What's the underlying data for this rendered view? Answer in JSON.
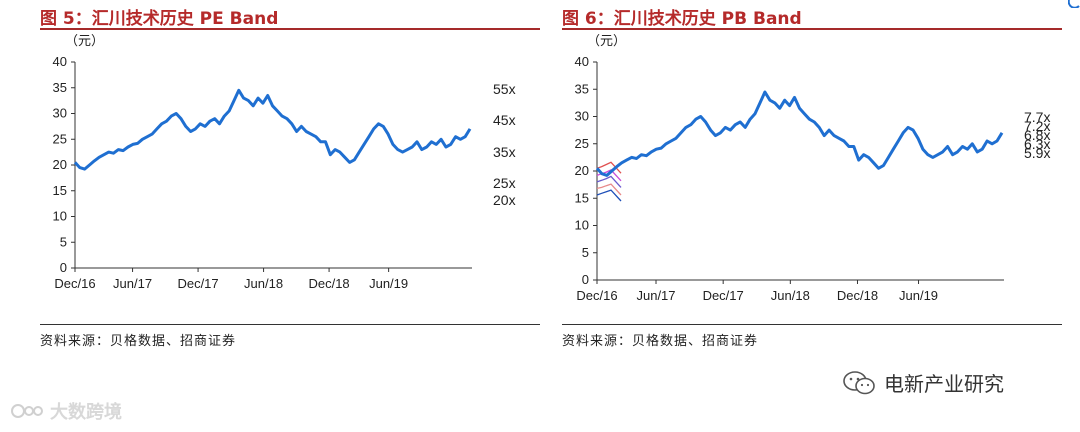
{
  "panels": [
    {
      "title": "图 5：汇川技术历史 PE Band",
      "source": "资料来源：贝格数据、招商证券"
    },
    {
      "title": "图 6：汇川技术历史 PB Band",
      "source": "资料来源：贝格数据、招商证券"
    }
  ],
  "watermarks": {
    "right": "电新产业研究",
    "left": "大数跨境"
  },
  "colors": {
    "line": "#1f6fd1",
    "title": "#b52a2a"
  },
  "chart_data": [
    {
      "type": "line",
      "title": "图 5：汇川技术历史 PE Band",
      "ylabel": "（元）",
      "ylim": [
        0,
        40
      ],
      "yticks": [
        0,
        5,
        10,
        15,
        20,
        25,
        30,
        35,
        40
      ],
      "xticks": [
        "Dec/16",
        "Jun/17",
        "Dec/17",
        "Jun/18",
        "Dec/18",
        "Jun/19"
      ],
      "band_labels": [
        "55x",
        "45x",
        "35x",
        "25x",
        "20x"
      ],
      "series": [
        {
          "values": [
            20.5,
            19.5,
            19.2,
            20.0,
            20.8,
            21.5,
            22.0,
            22.5,
            22.3,
            23.0,
            22.8,
            23.5,
            24.0,
            24.2,
            25.0,
            25.5,
            26.0,
            27.0,
            28.0,
            28.5,
            29.5,
            30.0,
            29.0,
            27.5,
            26.5,
            27.0,
            28.0,
            27.5,
            28.5,
            29.0,
            28.0,
            29.5,
            30.5,
            32.5,
            34.5,
            33.0,
            32.5,
            31.5,
            33.0,
            32.0,
            33.5,
            31.5,
            30.5,
            29.5,
            29.0,
            28.0,
            26.5,
            27.5,
            26.5,
            26.0,
            25.5,
            24.5,
            24.5,
            22.0,
            23.0,
            22.5,
            21.5,
            20.5,
            21.0,
            22.5,
            24.0,
            25.5,
            27.0,
            28.0,
            27.5,
            26.0,
            24.0,
            23.0,
            22.5,
            23.0,
            23.5,
            24.5,
            23.0,
            23.5,
            24.5,
            24.0,
            25.0,
            23.5,
            24.0,
            25.5,
            25.0,
            25.5,
            27.0
          ]
        }
      ]
    },
    {
      "type": "line",
      "title": "图 6：汇川技术历史 PB Band",
      "ylabel": "（元）",
      "ylim": [
        0,
        40
      ],
      "yticks": [
        0,
        5,
        10,
        15,
        20,
        25,
        30,
        35,
        40
      ],
      "xticks": [
        "Dec/16",
        "Jun/17",
        "Dec/17",
        "Jun/18",
        "Dec/18",
        "Jun/19"
      ],
      "band_labels": [
        "7.7x",
        "7.2x",
        "6.8x",
        "6.3x",
        "5.9x"
      ],
      "band_series": [
        {
          "name": "7.7x",
          "values": [
            20.5,
            20.8,
            21.2,
            21.6
          ]
        },
        {
          "name": "7.2x",
          "values": [
            19.2,
            19.5,
            19.8,
            20.2
          ]
        },
        {
          "name": "6.8x",
          "values": [
            18.0,
            18.3,
            18.6,
            19.0
          ]
        },
        {
          "name": "6.3x",
          "values": [
            16.8,
            17.0,
            17.3,
            17.6
          ]
        },
        {
          "name": "5.9x",
          "values": [
            15.6,
            15.9,
            16.2,
            16.5
          ]
        }
      ],
      "series": [
        {
          "values": [
            20.5,
            19.5,
            19.2,
            20.0,
            20.8,
            21.5,
            22.0,
            22.5,
            22.3,
            23.0,
            22.8,
            23.5,
            24.0,
            24.2,
            25.0,
            25.5,
            26.0,
            27.0,
            28.0,
            28.5,
            29.5,
            30.0,
            29.0,
            27.5,
            26.5,
            27.0,
            28.0,
            27.5,
            28.5,
            29.0,
            28.0,
            29.5,
            30.5,
            32.5,
            34.5,
            33.0,
            32.5,
            31.5,
            33.0,
            32.0,
            33.5,
            31.5,
            30.5,
            29.5,
            29.0,
            28.0,
            26.5,
            27.5,
            26.5,
            26.0,
            25.5,
            24.5,
            24.5,
            22.0,
            23.0,
            22.5,
            21.5,
            20.5,
            21.0,
            22.5,
            24.0,
            25.5,
            27.0,
            28.0,
            27.5,
            26.0,
            24.0,
            23.0,
            22.5,
            23.0,
            23.5,
            24.5,
            23.0,
            23.5,
            24.5,
            24.0,
            25.0,
            23.5,
            24.0,
            25.5,
            25.0,
            25.5,
            27.0
          ]
        }
      ]
    }
  ]
}
